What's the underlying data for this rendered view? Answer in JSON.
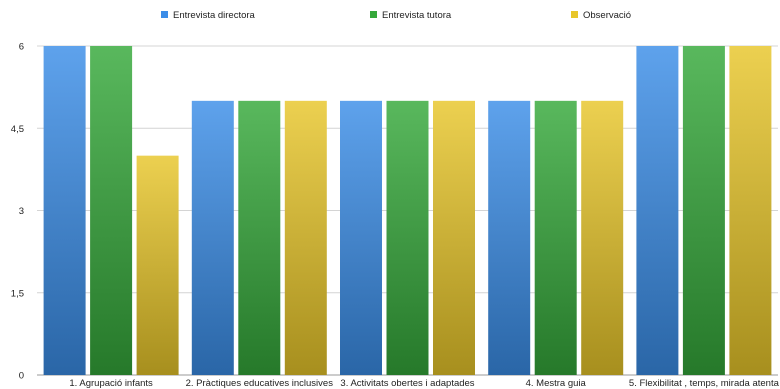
{
  "colors": {
    "Entrevista directora": "#3b8de8",
    "Entrevista tutora": "#35a83a",
    "Observació": "#e8c62a",
    "gridline": "#d4d4d4",
    "axis": "#9a9a9a"
  },
  "chart_data": {
    "type": "bar",
    "categories": [
      "1. Agrupació infants",
      "2. Pràctiques educatives inclusives",
      "3. Activitats obertes i adaptades",
      "4. Mestra guia",
      "5. Flexibilitat , temps, mirada atenta"
    ],
    "series": [
      {
        "name": "Entrevista directora",
        "values": [
          6,
          5,
          5,
          5,
          6
        ]
      },
      {
        "name": "Entrevista tutora",
        "values": [
          6,
          5,
          5,
          5,
          6
        ]
      },
      {
        "name": "Observació",
        "values": [
          4,
          5,
          5,
          5,
          6
        ]
      }
    ],
    "yticks": [
      "0",
      "1,5",
      "3",
      "4,5",
      "6"
    ],
    "ylim": [
      0,
      6
    ],
    "grid": true,
    "legend_position": "top"
  }
}
